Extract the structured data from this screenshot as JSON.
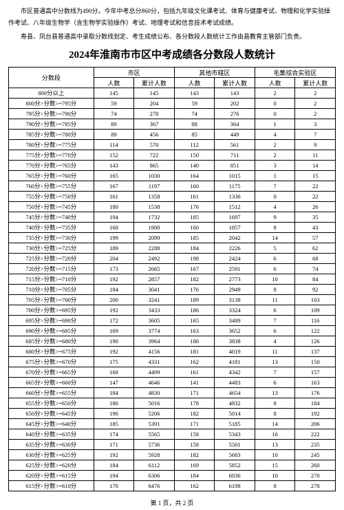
{
  "intro1": "市区普通高中分数线为490分。今年中考总分860分，包括九年级文化课考试、体育与健康考试、物理和化学实验操作考试、八年级生物学（含生物学实验操作）考试、地理考试和信息技术考试成绩。",
  "intro2": "寿县、凤台县普通高中录取分数线划定、考生成绩公布、各分数段人数统计工作由县教育主管部门负责。",
  "title": "2024年淮南市市区中考成绩各分数段人数统计",
  "headers": {
    "range": "分数段",
    "group1": "市区",
    "group2": "其他市辖区",
    "group3": "毛集综合实验区",
    "count": "人数",
    "cum": "累计人数"
  },
  "rows": [
    {
      "r": "800分以上",
      "a": "145",
      "b": "145",
      "c": "143",
      "d": "143",
      "e": "2",
      "f": "2"
    },
    {
      "r": "800分>分数>=795分",
      "a": "59",
      "b": "204",
      "c": "59",
      "d": "202",
      "e": "0",
      "f": "2"
    },
    {
      "r": "795分>分数>=790分",
      "a": "74",
      "b": "278",
      "c": "74",
      "d": "276",
      "e": "0",
      "f": "2"
    },
    {
      "r": "790分>分数>=785分",
      "a": "89",
      "b": "367",
      "c": "88",
      "d": "364",
      "e": "1",
      "f": "3"
    },
    {
      "r": "785分>分数>=780分",
      "a": "89",
      "b": "456",
      "c": "85",
      "d": "449",
      "e": "4",
      "f": "7"
    },
    {
      "r": "780分>分数>=775分",
      "a": "114",
      "b": "570",
      "c": "112",
      "d": "561",
      "e": "2",
      "f": "9"
    },
    {
      "r": "775分>分数>=770分",
      "a": "152",
      "b": "722",
      "c": "150",
      "d": "711",
      "e": "2",
      "f": "11"
    },
    {
      "r": "770分>分数>=765分",
      "a": "143",
      "b": "865",
      "c": "140",
      "d": "851",
      "e": "3",
      "f": "14"
    },
    {
      "r": "765分>分数>=760分",
      "a": "165",
      "b": "1030",
      "c": "164",
      "d": "1015",
      "e": "1",
      "f": "15"
    },
    {
      "r": "760分>分数>=755分",
      "a": "167",
      "b": "1197",
      "c": "160",
      "d": "1175",
      "e": "7",
      "f": "22"
    },
    {
      "r": "755分>分数>=750分",
      "a": "161",
      "b": "1358",
      "c": "161",
      "d": "1336",
      "e": "0",
      "f": "22"
    },
    {
      "r": "750分>分数>=745分",
      "a": "180",
      "b": "1538",
      "c": "176",
      "d": "1512",
      "e": "4",
      "f": "26"
    },
    {
      "r": "745分>分数>=740分",
      "a": "194",
      "b": "1732",
      "c": "185",
      "d": "1697",
      "e": "9",
      "f": "35"
    },
    {
      "r": "740分>分数>=735分",
      "a": "168",
      "b": "1900",
      "c": "160",
      "d": "1857",
      "e": "8",
      "f": "43"
    },
    {
      "r": "735分>分数>=730分",
      "a": "199",
      "b": "2099",
      "c": "185",
      "d": "2042",
      "e": "14",
      "f": "57"
    },
    {
      "r": "730分>分数>=725分",
      "a": "189",
      "b": "2288",
      "c": "184",
      "d": "2226",
      "e": "5",
      "f": "62"
    },
    {
      "r": "725分>分数>=720分",
      "a": "204",
      "b": "2492",
      "c": "198",
      "d": "2424",
      "e": "6",
      "f": "68"
    },
    {
      "r": "720分>分数>=715分",
      "a": "173",
      "b": "2665",
      "c": "167",
      "d": "2591",
      "e": "6",
      "f": "74"
    },
    {
      "r": "715分>分数>=710分",
      "a": "192",
      "b": "2857",
      "c": "182",
      "d": "2773",
      "e": "10",
      "f": "84"
    },
    {
      "r": "710分>分数>=705分",
      "a": "184",
      "b": "3041",
      "c": "176",
      "d": "2949",
      "e": "8",
      "f": "92"
    },
    {
      "r": "705分>分数>=700分",
      "a": "200",
      "b": "3241",
      "c": "189",
      "d": "3138",
      "e": "11",
      "f": "103"
    },
    {
      "r": "700分>分数>=695分",
      "a": "192",
      "b": "3433",
      "c": "186",
      "d": "3324",
      "e": "6",
      "f": "109"
    },
    {
      "r": "695分>分数>=690分",
      "a": "172",
      "b": "3605",
      "c": "165",
      "d": "3489",
      "e": "7",
      "f": "116"
    },
    {
      "r": "690分>分数>=685分",
      "a": "169",
      "b": "3774",
      "c": "163",
      "d": "3652",
      "e": "6",
      "f": "122"
    },
    {
      "r": "685分>分数>=680分",
      "a": "190",
      "b": "3964",
      "c": "186",
      "d": "3838",
      "e": "4",
      "f": "126"
    },
    {
      "r": "680分>分数>=675分",
      "a": "192",
      "b": "4156",
      "c": "181",
      "d": "4019",
      "e": "11",
      "f": "137"
    },
    {
      "r": "675分>分数>=670分",
      "a": "175",
      "b": "4331",
      "c": "162",
      "d": "4181",
      "e": "13",
      "f": "150"
    },
    {
      "r": "670分>分数>=665分",
      "a": "168",
      "b": "4499",
      "c": "161",
      "d": "4342",
      "e": "7",
      "f": "157"
    },
    {
      "r": "665分>分数>=660分",
      "a": "147",
      "b": "4646",
      "c": "141",
      "d": "4483",
      "e": "6",
      "f": "163"
    },
    {
      "r": "660分>分数>=655分",
      "a": "184",
      "b": "4830",
      "c": "171",
      "d": "4654",
      "e": "13",
      "f": "176"
    },
    {
      "r": "655分>分数>=650分",
      "a": "186",
      "b": "5016",
      "c": "178",
      "d": "4832",
      "e": "8",
      "f": "184"
    },
    {
      "r": "650分>分数>=645分",
      "a": "190",
      "b": "5206",
      "c": "182",
      "d": "5014",
      "e": "8",
      "f": "192"
    },
    {
      "r": "645分>分数>=640分",
      "a": "185",
      "b": "5391",
      "c": "171",
      "d": "5185",
      "e": "14",
      "f": "206"
    },
    {
      "r": "640分>分数>=635分",
      "a": "174",
      "b": "5565",
      "c": "158",
      "d": "5343",
      "e": "16",
      "f": "222"
    },
    {
      "r": "635分>分数>=630分",
      "a": "171",
      "b": "5736",
      "c": "158",
      "d": "5501",
      "e": "13",
      "f": "235"
    },
    {
      "r": "630分>分数>=625分",
      "a": "192",
      "b": "5928",
      "c": "182",
      "d": "5683",
      "e": "10",
      "f": "245"
    },
    {
      "r": "625分>分数>=620分",
      "a": "184",
      "b": "6112",
      "c": "169",
      "d": "5852",
      "e": "15",
      "f": "260"
    },
    {
      "r": "620分>分数>=615分",
      "a": "194",
      "b": "6306",
      "c": "184",
      "d": "6036",
      "e": "10",
      "f": "270"
    },
    {
      "r": "615分>分数>=610分",
      "a": "170",
      "b": "6476",
      "c": "162",
      "d": "6198",
      "e": "8",
      "f": "278"
    }
  ],
  "pager": "第 1 页，共 2 页"
}
